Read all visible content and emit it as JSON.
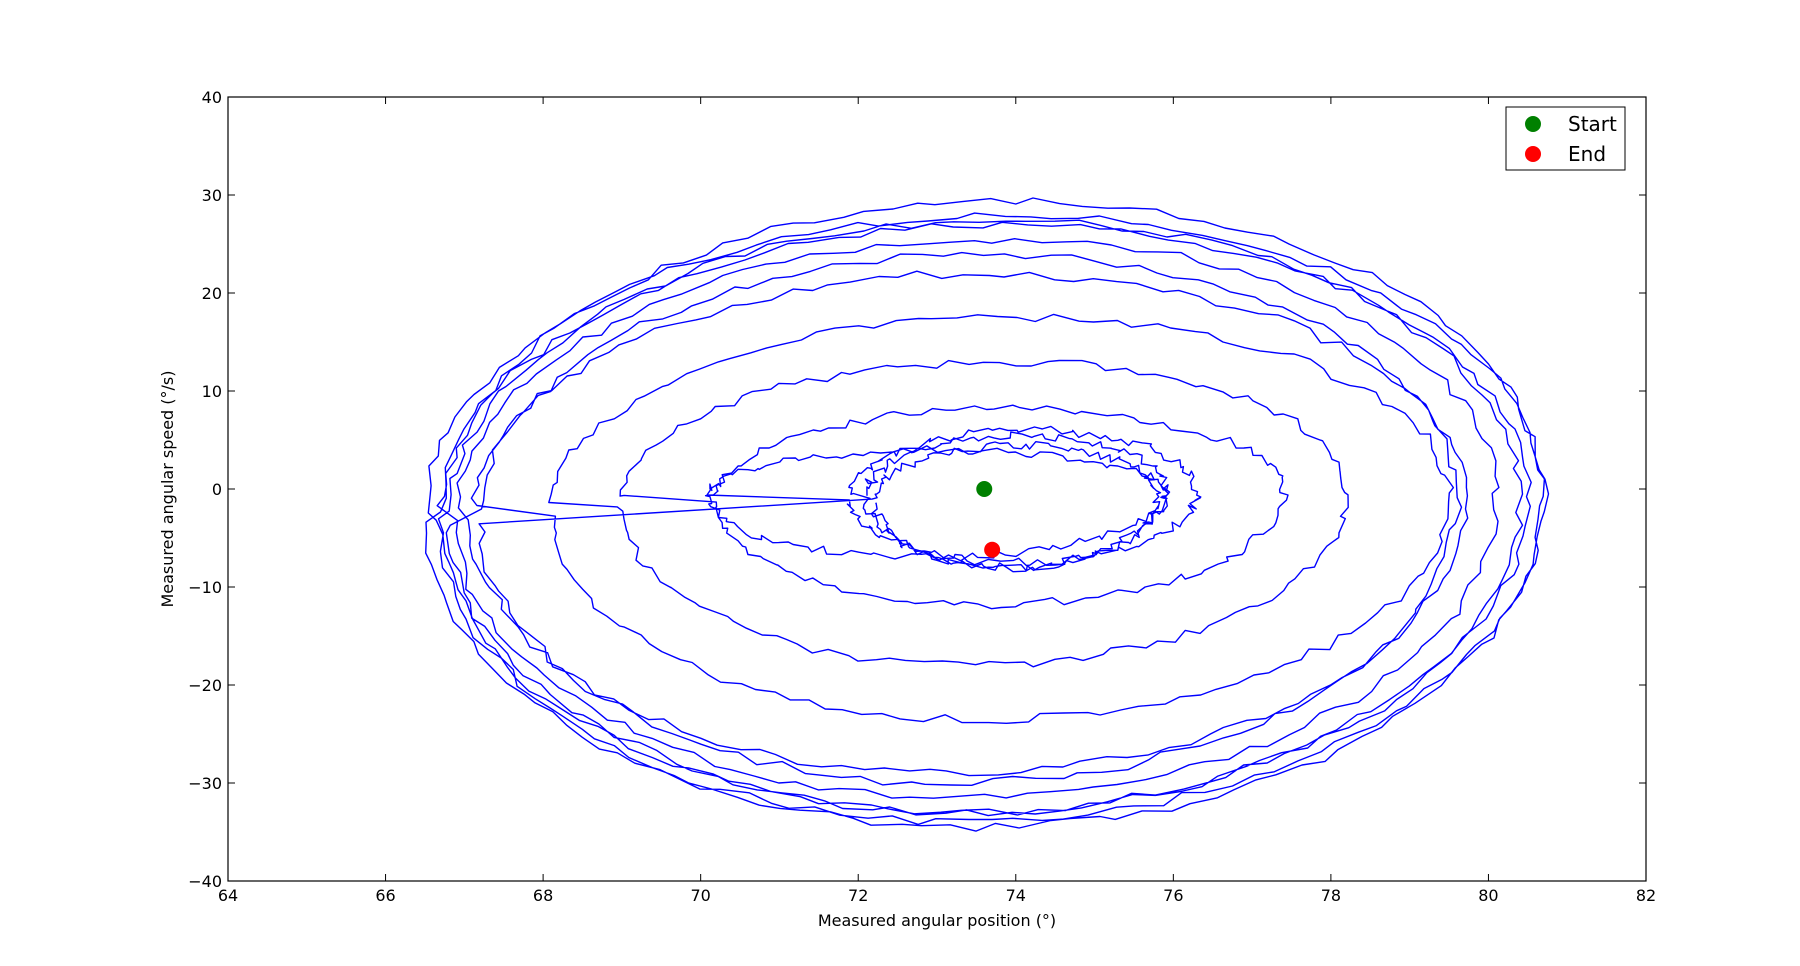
{
  "chart_data": {
    "type": "line",
    "title": "",
    "xlabel": "Measured angular position (°)",
    "ylabel": "Measured angular speed (°/s)",
    "xlim": [
      64,
      82
    ],
    "ylim": [
      -40,
      40
    ],
    "xticks": [
      64,
      66,
      68,
      70,
      72,
      74,
      76,
      78,
      80,
      82
    ],
    "yticks": [
      40,
      30,
      20,
      10,
      0,
      -10,
      -20,
      -30,
      -40
    ],
    "xtick_labels": [
      "64",
      "66",
      "68",
      "70",
      "72",
      "74",
      "76",
      "78",
      "80",
      "82"
    ],
    "ytick_labels": [
      "40",
      "30",
      "20",
      "10",
      "0",
      "−10",
      "−20",
      "−30",
      "−40"
    ],
    "grid": false,
    "legend_position": "top-right",
    "series": [
      {
        "kind": "trajectory",
        "color": "#0000ff",
        "description_points": "phase-portrait spiral, inner to outer then back inward",
        "loops": [
          {
            "cx": 74.0,
            "cy": -0.5,
            "ax": 1.9,
            "ay_top": 6.0,
            "ay_bot": -7.5
          },
          {
            "cx": 74.1,
            "cy": -0.5,
            "ax": 2.2,
            "ay_top": 6.5,
            "ay_bot": -7.0
          },
          {
            "cx": 73.0,
            "cy": -0.5,
            "ax": 2.9,
            "ay_top": 4.5,
            "ay_bot": -6.5
          },
          {
            "cx": 73.8,
            "cy": -0.8,
            "ax": 3.6,
            "ay_top": 9.0,
            "ay_bot": -11.0
          },
          {
            "cx": 73.6,
            "cy": -1.0,
            "ax": 4.6,
            "ay_top": 14.0,
            "ay_bot": -17.0
          },
          {
            "cx": 73.8,
            "cy": -1.5,
            "ax": 5.7,
            "ay_top": 19.0,
            "ay_bot": -22.0
          },
          {
            "cx": 73.4,
            "cy": -2.0,
            "ax": 6.3,
            "ay_top": 24.0,
            "ay_bot": -27.0
          },
          {
            "cx": 73.5,
            "cy": -2.0,
            "ax": 6.6,
            "ay_top": 27.5,
            "ay_bot": -29.5
          },
          {
            "cx": 73.6,
            "cy": -2.0,
            "ax": 6.9,
            "ay_top": 29.0,
            "ay_bot": -31.0
          },
          {
            "cx": 73.6,
            "cy": -2.0,
            "ax": 7.1,
            "ay_top": 30.0,
            "ay_bot": -32.0
          },
          {
            "cx": 73.7,
            "cy": -2.0,
            "ax": 7.0,
            "ay_top": 31.5,
            "ay_bot": -32.5
          },
          {
            "cx": 73.6,
            "cy": -2.0,
            "ax": 6.8,
            "ay_top": 29.5,
            "ay_bot": -31.0
          },
          {
            "cx": 73.4,
            "cy": -2.0,
            "ax": 6.2,
            "ay_top": 26.0,
            "ay_bot": -28.0
          },
          {
            "cx": 74.0,
            "cy": -1.0,
            "ax": 1.8,
            "ay_top": 5.5,
            "ay_bot": -7.0
          }
        ]
      }
    ],
    "markers": [
      {
        "name": "Start",
        "x": 73.6,
        "y": 0.0,
        "color": "#008000"
      },
      {
        "name": "End",
        "x": 73.7,
        "y": -6.2,
        "color": "#ff0000"
      }
    ],
    "legend": [
      {
        "label": "Start",
        "color": "#008000"
      },
      {
        "label": "End",
        "color": "#ff0000"
      }
    ]
  }
}
